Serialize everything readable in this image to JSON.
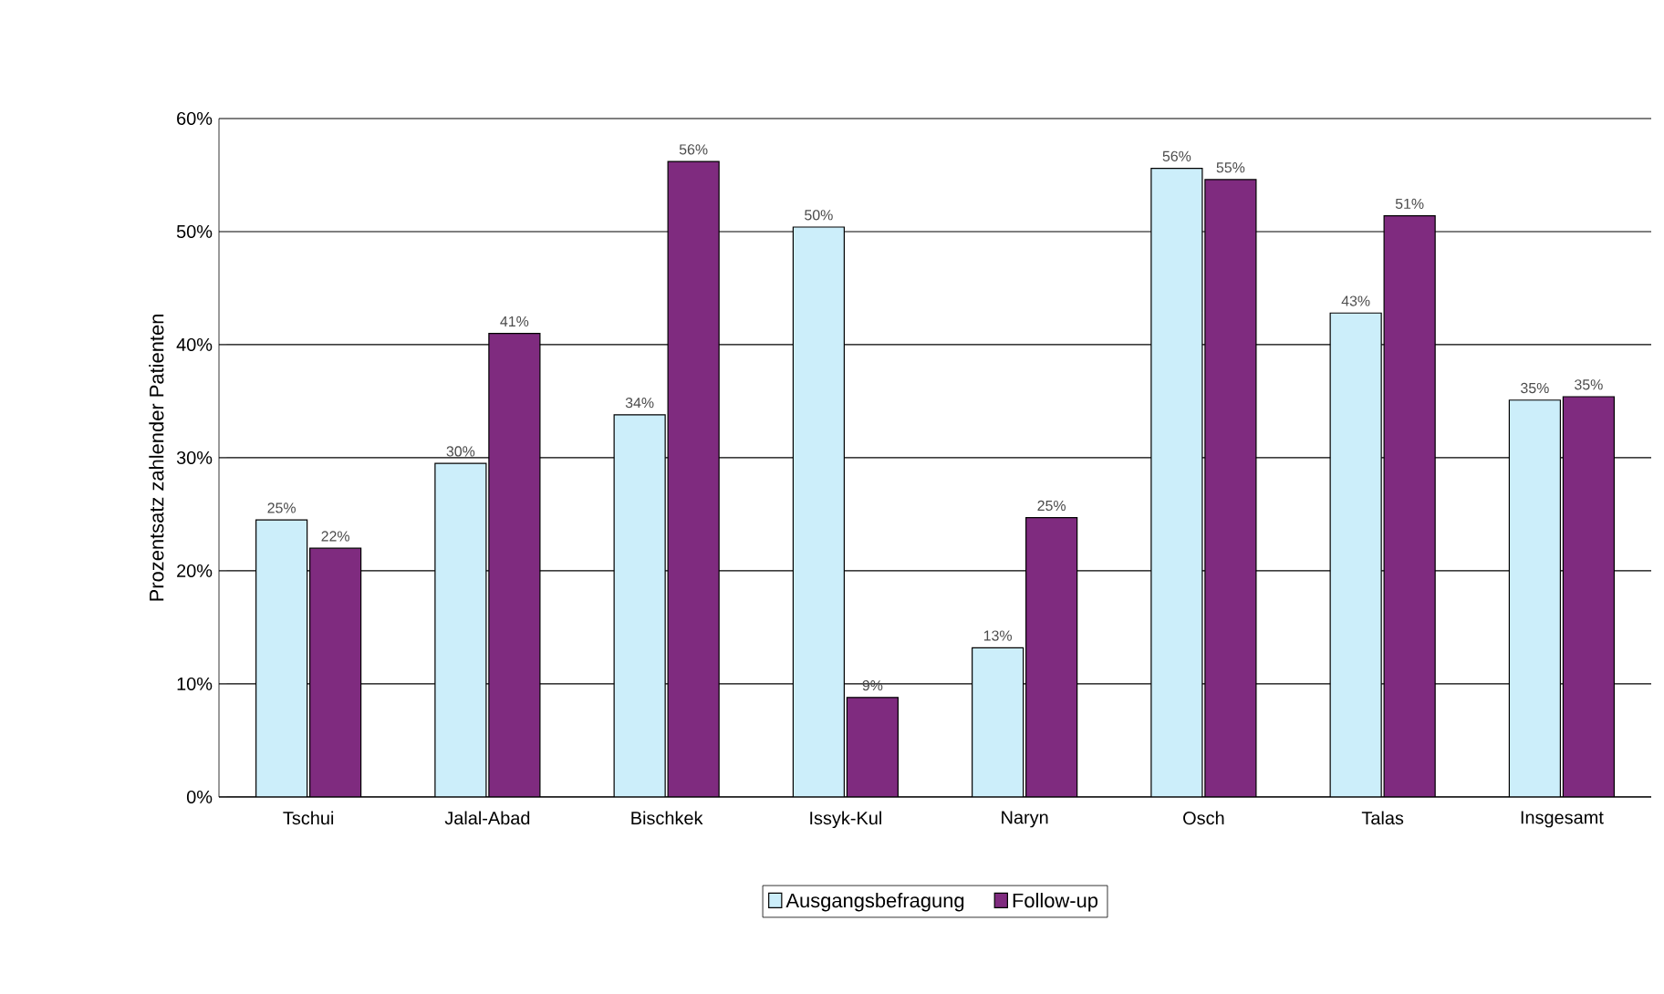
{
  "chart_data": {
    "type": "bar",
    "ylabel": "Prozentsatz zahlender Patienten",
    "categories": [
      "Tschui",
      "Jalal-Abad",
      "Bischkek",
      "Issyk-Kul",
      "Naryn",
      "Osch",
      "Talas",
      "Insgesamt"
    ],
    "series": [
      {
        "name": "Ausgangsbefragung",
        "color": "#cceefa",
        "values": [
          24.5,
          29.5,
          33.8,
          50.4,
          13.2,
          55.6,
          42.8,
          35.1
        ],
        "value_labels": [
          "25%",
          "30%",
          "34%",
          "50%",
          "13%",
          "56%",
          "43%",
          "35%"
        ]
      },
      {
        "name": "Follow-up",
        "color": "#7f2b7f",
        "values": [
          22,
          41,
          56.2,
          8.8,
          24.7,
          54.6,
          51.4,
          35.4
        ],
        "value_labels": [
          "22%",
          "41%",
          "56%",
          "9%",
          "25%",
          "55%",
          "51%",
          "35%"
        ]
      }
    ],
    "ylim": [
      0,
      60
    ],
    "yticks": [
      {
        "value": 0,
        "label": "0%"
      },
      {
        "value": 10,
        "label": "10%"
      },
      {
        "value": 20,
        "label": "20%"
      },
      {
        "value": 30,
        "label": "30%"
      },
      {
        "value": 40,
        "label": "40%"
      },
      {
        "value": 50,
        "label": "50%"
      },
      {
        "value": 60,
        "label": "60%"
      }
    ],
    "grid": "y",
    "legend": "bottom"
  }
}
